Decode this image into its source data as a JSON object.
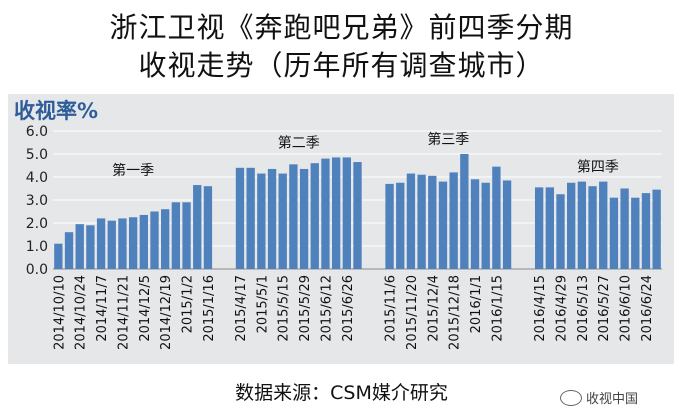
{
  "title_line1": "浙江卫视《奔跑吧兄弟》前四季分期",
  "title_line2": "收视走势（历年所有调查城市）",
  "source": "数据来源：CSM媒介研究",
  "watermark": {
    "text": "收视中国",
    "icon": "wechat-icon"
  },
  "chart_data": {
    "type": "bar",
    "ylabel": "收视率%",
    "ylim": [
      0,
      6
    ],
    "yticks": [
      "0.0",
      "1.0",
      "2.0",
      "3.0",
      "4.0",
      "5.0",
      "6.0"
    ],
    "grid": true,
    "bar_color": "#4f81bd",
    "seasons": [
      {
        "name": "第一季",
        "values": [
          1.1,
          1.6,
          1.95,
          1.9,
          2.2,
          2.1,
          2.2,
          2.25,
          2.35,
          2.5,
          2.6,
          2.9,
          2.9,
          3.65,
          3.6
        ],
        "tick_labels": [
          "2014/10/10",
          "2014/10/24",
          "2014/11/7",
          "2014/11/21",
          "2014/12/5",
          "2014/12/19",
          "2015/1/2",
          "2015/1/16"
        ]
      },
      {
        "name": "第二季",
        "values": [
          4.4,
          4.4,
          4.15,
          4.35,
          4.15,
          4.55,
          4.35,
          4.6,
          4.8,
          4.85,
          4.85,
          4.65
        ],
        "tick_labels": [
          "2015/4/17",
          "2015/5/1",
          "2015/5/15",
          "2015/5/29",
          "2015/6/12",
          "2015/6/26"
        ]
      },
      {
        "name": "第三季",
        "values": [
          3.7,
          3.75,
          4.15,
          4.1,
          4.05,
          3.8,
          4.2,
          5.0,
          3.9,
          3.75,
          4.45,
          3.85
        ],
        "tick_labels": [
          "2015/11/6",
          "2015/11/20",
          "2015/12/4",
          "2015/12/18",
          "2016/1/1",
          "2016/1/15"
        ]
      },
      {
        "name": "第四季",
        "values": [
          3.55,
          3.55,
          3.25,
          3.75,
          3.8,
          3.6,
          3.8,
          3.1,
          3.5,
          3.1,
          3.3,
          3.45
        ],
        "tick_labels": [
          "2016/4/15",
          "2016/4/29",
          "2016/5/13",
          "2016/5/27",
          "2016/6/10",
          "2016/6/24"
        ]
      }
    ]
  }
}
